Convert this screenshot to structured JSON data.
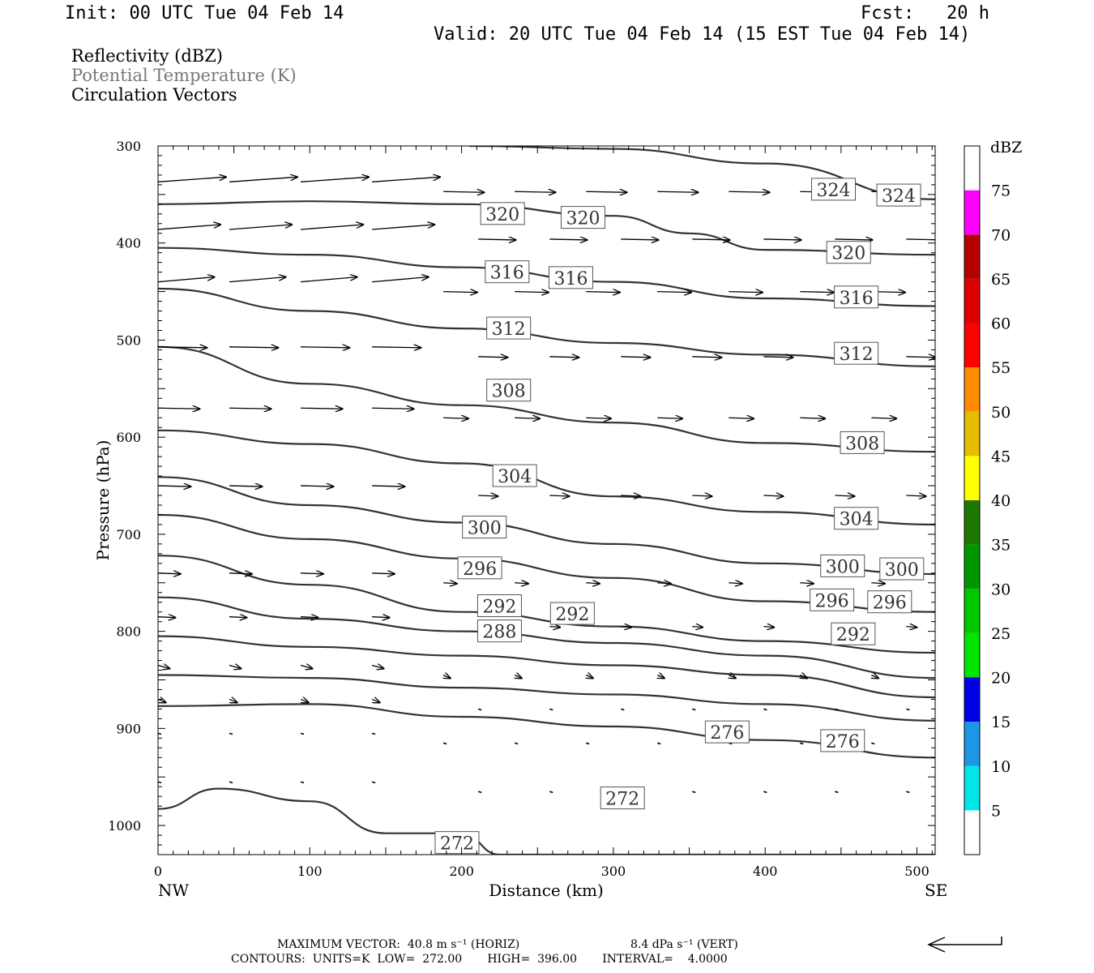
{
  "header": {
    "init": "Init: 00 UTC Tue 04 Feb 14",
    "fcst": "Fcst:   20 h",
    "valid": "Valid: 20 UTC Tue 04 Feb 14 (15 EST Tue 04 Feb 14)"
  },
  "legend": {
    "reflectivity": "Reflectivity (dBZ)",
    "theta": "Potential Temperature (K)",
    "vectors": "Circulation Vectors"
  },
  "colors": {
    "theta_line": "#333333",
    "theta_label": "#555555"
  },
  "chart_data": {
    "type": "contour-cross-section",
    "xlabel": "Distance (km)",
    "ylabel": "Pressure (hPa)",
    "xlim": [
      0,
      512
    ],
    "ylim": [
      1030,
      300
    ],
    "x_ticks": [
      0,
      100,
      200,
      300,
      400,
      500
    ],
    "y_ticks": [
      300,
      400,
      500,
      600,
      700,
      800,
      900,
      1000
    ],
    "x_end_labels": {
      "left": "NW",
      "right": "SE"
    },
    "colorbar": {
      "title": "dBZ",
      "levels": [
        5,
        10,
        15,
        20,
        25,
        30,
        35,
        40,
        45,
        50,
        55,
        60,
        65,
        70,
        75
      ],
      "colors": [
        "#ffffff",
        "#00e6e6",
        "#1e96e6",
        "#0000e6",
        "#00e600",
        "#00c800",
        "#009600",
        "#1e7800",
        "#ffff00",
        "#e6be00",
        "#ff8c00",
        "#ff0000",
        "#dc0000",
        "#b40000",
        "#ff00ff",
        "#9a50c8"
      ]
    },
    "contours": {
      "units": "K",
      "low": 272.0,
      "high": 396.0,
      "interval": 4.0,
      "lines": [
        {
          "level": 324,
          "points": [
            [
              205,
              300
            ],
            [
              300,
              303
            ],
            [
              400,
              318
            ],
            [
              512,
              355
            ]
          ],
          "labels": [
            [
              445,
              345
            ],
            [
              488,
              351
            ]
          ]
        },
        {
          "level": 320,
          "points": [
            [
              0,
              360
            ],
            [
              100,
              357
            ],
            [
              200,
              360
            ],
            [
              300,
              372
            ],
            [
              350,
              390
            ],
            [
              400,
              407
            ],
            [
              512,
              412
            ]
          ],
          "labels": [
            [
              227,
              370
            ],
            [
              280,
              374
            ],
            [
              455,
              410
            ]
          ]
        },
        {
          "level": 316,
          "points": [
            [
              0,
              405
            ],
            [
              100,
              412
            ],
            [
              200,
              425
            ],
            [
              300,
              440
            ],
            [
              400,
              457
            ],
            [
              512,
              465
            ]
          ],
          "labels": [
            [
              230,
              430
            ],
            [
              272,
              436
            ],
            [
              460,
              456
            ]
          ]
        },
        {
          "level": 312,
          "points": [
            [
              0,
              447
            ],
            [
              100,
              470
            ],
            [
              200,
              488
            ],
            [
              300,
              503
            ],
            [
              400,
              515
            ],
            [
              512,
              527
            ]
          ],
          "labels": [
            [
              231,
              488
            ],
            [
              460,
              514
            ]
          ]
        },
        {
          "level": 308,
          "points": [
            [
              0,
              507
            ],
            [
              100,
              545
            ],
            [
              200,
              567
            ],
            [
              300,
              585
            ],
            [
              400,
              606
            ],
            [
              512,
              615
            ]
          ],
          "labels": [
            [
              231,
              552
            ],
            [
              464,
              606
            ]
          ]
        },
        {
          "level": 304,
          "points": [
            [
              0,
              593
            ],
            [
              100,
              607
            ],
            [
              200,
              627
            ],
            [
              300,
              661
            ],
            [
              400,
              677
            ],
            [
              512,
              690
            ]
          ],
          "labels": [
            [
              235,
              640
            ],
            [
              460,
              684
            ]
          ]
        },
        {
          "level": 300,
          "points": [
            [
              0,
              641
            ],
            [
              100,
              670
            ],
            [
              200,
              688
            ],
            [
              300,
              710
            ],
            [
              400,
              730
            ],
            [
              512,
              741
            ]
          ],
          "labels": [
            [
              215,
              693
            ],
            [
              451,
              733
            ],
            [
              490,
              736
            ]
          ]
        },
        {
          "level": 296,
          "points": [
            [
              0,
              680
            ],
            [
              100,
              705
            ],
            [
              200,
              725
            ],
            [
              300,
              745
            ],
            [
              400,
              769
            ],
            [
              512,
              780
            ]
          ],
          "labels": [
            [
              212,
              735
            ],
            [
              444,
              768
            ],
            [
              482,
              770
            ]
          ]
        },
        {
          "level": 292,
          "points": [
            [
              0,
              722
            ],
            [
              100,
              752
            ],
            [
              200,
              780
            ],
            [
              300,
              795
            ],
            [
              400,
              810
            ],
            [
              512,
              822
            ]
          ],
          "labels": [
            [
              225,
              774
            ],
            [
              273,
              782
            ],
            [
              458,
              803
            ]
          ]
        },
        {
          "level": 288,
          "points": [
            [
              0,
              765
            ],
            [
              100,
              787
            ],
            [
              200,
              800
            ],
            [
              300,
              812
            ],
            [
              400,
              825
            ],
            [
              512,
              848
            ]
          ],
          "labels": [
            [
              225,
              800
            ]
          ]
        },
        {
          "level": 284,
          "points": [
            [
              0,
              805
            ],
            [
              100,
              816
            ],
            [
              200,
              825
            ],
            [
              300,
              835
            ],
            [
              400,
              845
            ],
            [
              512,
              868
            ]
          ],
          "labels": []
        },
        {
          "level": 280,
          "points": [
            [
              0,
              845
            ],
            [
              100,
              848
            ],
            [
              200,
              858
            ],
            [
              300,
              865
            ],
            [
              400,
              875
            ],
            [
              512,
              892
            ]
          ],
          "labels": []
        },
        {
          "level": 276,
          "points": [
            [
              0,
              877
            ],
            [
              100,
              875
            ],
            [
              200,
              888
            ],
            [
              300,
              898
            ],
            [
              400,
              912
            ],
            [
              512,
              930
            ]
          ],
          "labels": [
            [
              375,
              904
            ],
            [
              451,
              913
            ]
          ]
        },
        {
          "level": 272,
          "points": [
            [
              0,
              983
            ],
            [
              40,
              962
            ],
            [
              100,
              975
            ],
            [
              150,
              1008
            ],
            [
              200,
              1008
            ],
            [
              225,
              1030
            ],
            [
              512,
              1030
            ]
          ],
          "labels": [
            [
              197,
              1018
            ],
            [
              306,
              972
            ]
          ]
        }
      ]
    },
    "vector_scale": {
      "max_horiz": "MAXIMUM VECTOR:  40.8 m s⁻¹ (HORIZ)",
      "max_vert": "8.4 dPa s⁻¹ (VERT)"
    },
    "footer_contours": "CONTOURS:  UNITS=K  LOW=  272.00       HIGH=  396.00       INTERVAL=    4.0000"
  }
}
